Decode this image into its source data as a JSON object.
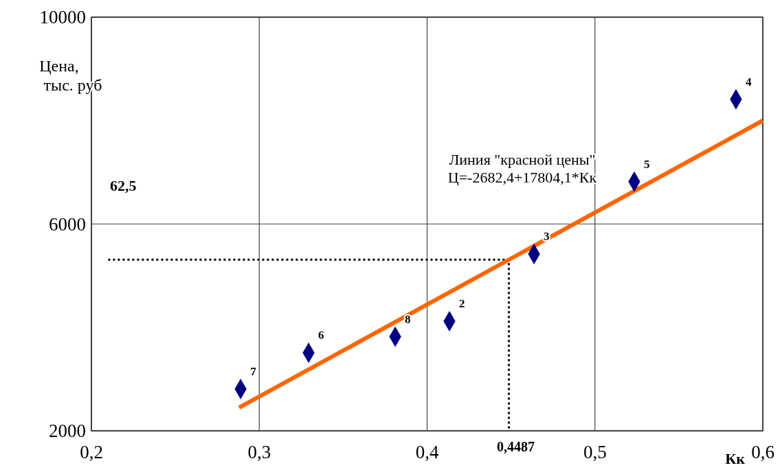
{
  "chart_data": {
    "type": "scatter",
    "xlabel": "Кк",
    "ylabel": "Цена,\nтыс. руб",
    "xlim": [
      0.2,
      0.6
    ],
    "ylim": [
      2000,
      10000
    ],
    "xticks": [
      {
        "value": 0.2,
        "label": "0,2"
      },
      {
        "value": 0.3,
        "label": "0,3"
      },
      {
        "value": 0.4,
        "label": "0,4"
      },
      {
        "value": 0.5,
        "label": "0,5"
      },
      {
        "value": 0.6,
        "label": "0,6"
      }
    ],
    "yticks": [
      2000,
      6000,
      10000
    ],
    "grid": true,
    "series": [
      {
        "type": "line",
        "line_style": "dotted",
        "color": "#000000",
        "x": [
          0.21,
          0.4487,
          0.4487
        ],
        "values": [
          5310,
          5310,
          2000
        ]
      },
      {
        "type": "line",
        "line_style": "solid",
        "color": "#ff6600",
        "x": [
          0.288,
          0.6
        ],
        "values": [
          2450,
          8000
        ]
      },
      {
        "type": "scatter",
        "marker": "diamond",
        "color": "#000080",
        "x": [
          0.2889,
          0.3294,
          0.381,
          0.4133,
          0.4637,
          0.5234,
          0.584
        ],
        "values": [
          2810,
          3510,
          3820,
          4120,
          5420,
          6820,
          8410
        ]
      }
    ],
    "annotations": [
      {
        "text": "7",
        "x": 0.2889,
        "y": 2810
      },
      {
        "text": "6",
        "x": 0.3294,
        "y": 3510
      },
      {
        "text": "8",
        "x": 0.381,
        "y": 3820
      },
      {
        "text": "2",
        "x": 0.4133,
        "y": 4120
      },
      {
        "text": "3",
        "x": 0.4637,
        "y": 5420
      },
      {
        "text": "5",
        "x": 0.5234,
        "y": 6820
      },
      {
        "text": "4",
        "x": 0.584,
        "y": 8410
      },
      {
        "text": "0,4487",
        "x": 0.4487,
        "y": 2000
      },
      "62,5",
      "Линия \"красной цены\"\nЦ=-2682,4+17804,1*Кк"
    ]
  }
}
